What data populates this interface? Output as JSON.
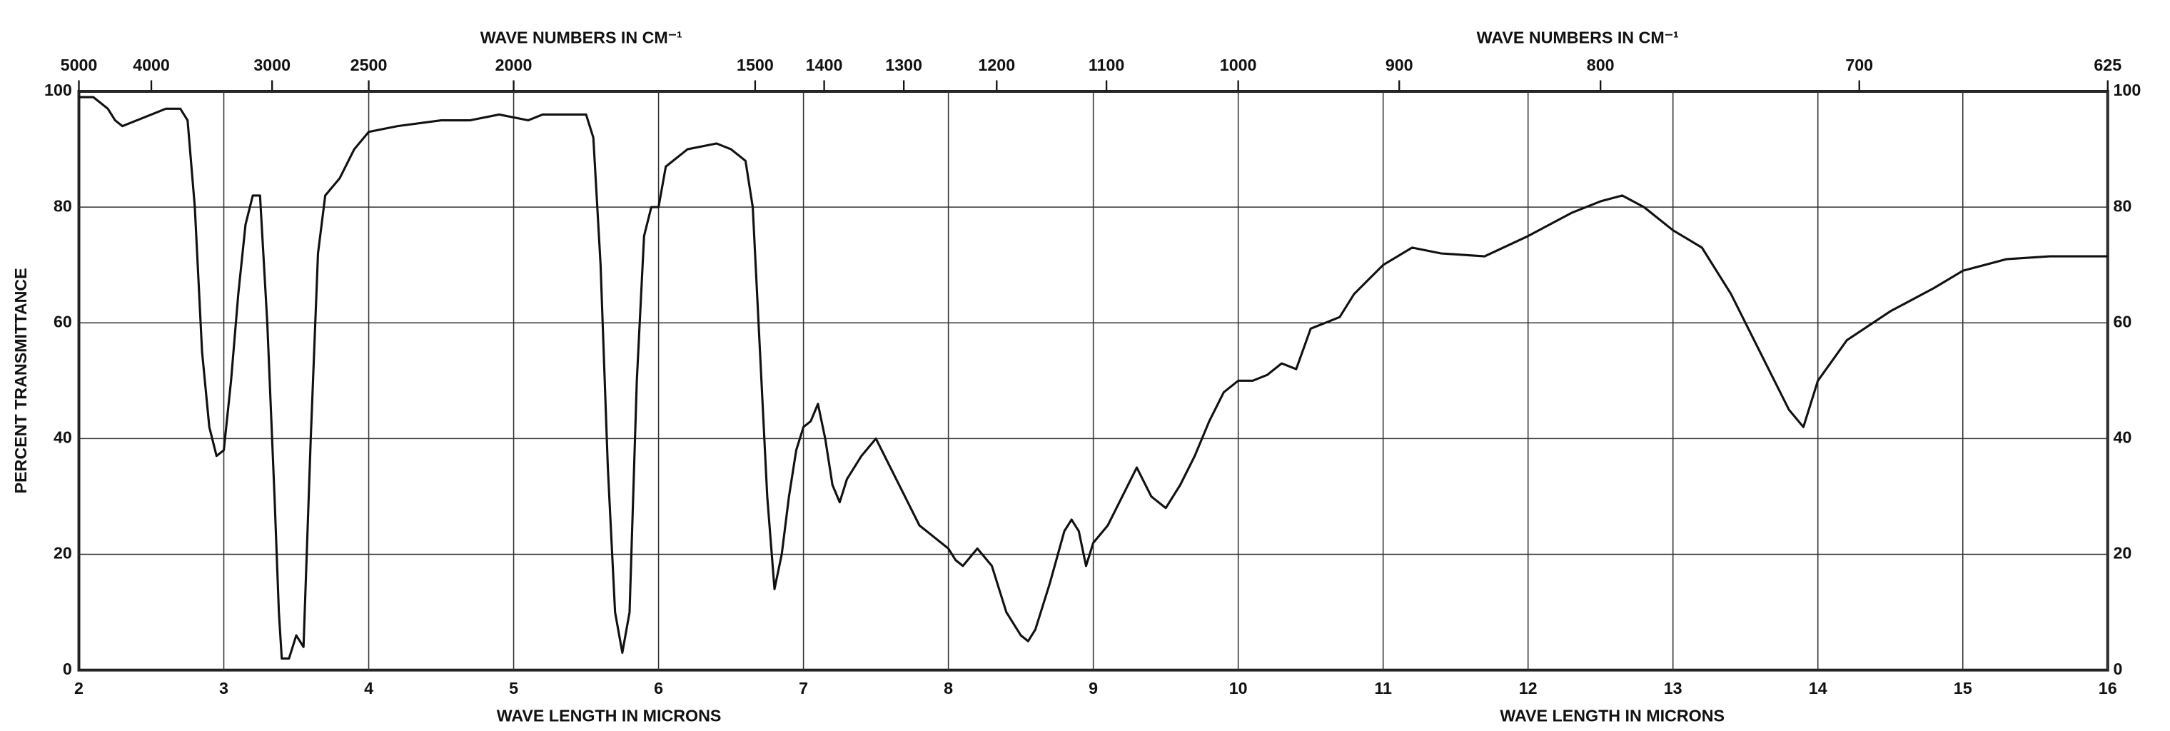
{
  "chart_data": {
    "type": "line",
    "top_axis_label": "WAVE NUMBERS IN CM⁻¹",
    "x_axis_label": "WAVE LENGTH IN MICRONS",
    "y_axis_label": "PERCENT TRANSMITTANCE",
    "color": "#111111",
    "grid": true,
    "xlim": [
      2,
      16
    ],
    "xticks": [
      2,
      3,
      4,
      5,
      6,
      7,
      8,
      9,
      10,
      11,
      12,
      13,
      14,
      15,
      16
    ],
    "x2ticks": [
      5000,
      4000,
      3000,
      2500,
      2000,
      1500,
      1400,
      1300,
      1200,
      1100,
      1000,
      900,
      800,
      700,
      625
    ],
    "ylim": [
      0,
      100
    ],
    "yticks": [
      0,
      20,
      40,
      60,
      80,
      100
    ],
    "x": [
      2.0,
      2.1,
      2.2,
      2.25,
      2.3,
      2.4,
      2.5,
      2.6,
      2.7,
      2.75,
      2.8,
      2.85,
      2.9,
      2.95,
      3.0,
      3.05,
      3.1,
      3.15,
      3.2,
      3.25,
      3.3,
      3.35,
      3.38,
      3.4,
      3.45,
      3.5,
      3.55,
      3.6,
      3.65,
      3.7,
      3.8,
      3.9,
      4.0,
      4.2,
      4.5,
      4.7,
      4.9,
      5.1,
      5.2,
      5.5,
      5.55,
      5.6,
      5.65,
      5.7,
      5.75,
      5.8,
      5.85,
      5.9,
      5.95,
      6.0,
      6.05,
      6.2,
      6.4,
      6.5,
      6.6,
      6.65,
      6.7,
      6.75,
      6.8,
      6.85,
      6.9,
      6.95,
      7.0,
      7.05,
      7.1,
      7.15,
      7.2,
      7.25,
      7.3,
      7.4,
      7.5,
      7.6,
      7.7,
      7.8,
      7.9,
      8.0,
      8.05,
      8.1,
      8.2,
      8.3,
      8.4,
      8.5,
      8.55,
      8.6,
      8.7,
      8.8,
      8.85,
      8.9,
      8.95,
      9.0,
      9.1,
      9.2,
      9.3,
      9.4,
      9.5,
      9.6,
      9.7,
      9.8,
      9.9,
      10.0,
      10.1,
      10.2,
      10.3,
      10.4,
      10.5,
      10.6,
      10.7,
      10.8,
      11.0,
      11.2,
      11.4,
      11.7,
      12.0,
      12.3,
      12.5,
      12.65,
      12.8,
      13.0,
      13.2,
      13.4,
      13.6,
      13.8,
      13.9,
      14.0,
      14.2,
      14.5,
      14.8,
      15.0,
      15.3,
      15.6,
      16.0
    ],
    "values": [
      99,
      99,
      97,
      95,
      94,
      95,
      96,
      97,
      97,
      95,
      80,
      55,
      42,
      37,
      38,
      50,
      65,
      77,
      82,
      82,
      60,
      30,
      10,
      2,
      2,
      6,
      4,
      40,
      72,
      82,
      85,
      90,
      93,
      94,
      95,
      95,
      96,
      95,
      96,
      96,
      92,
      70,
      35,
      10,
      3,
      10,
      50,
      75,
      80,
      80,
      87,
      90,
      91,
      90,
      88,
      80,
      55,
      30,
      14,
      20,
      30,
      38,
      42,
      43,
      46,
      40,
      32,
      29,
      33,
      37,
      40,
      35,
      30,
      25,
      23,
      21,
      19,
      18,
      21,
      18,
      10,
      6,
      5,
      7,
      15,
      24,
      26,
      24,
      18,
      22,
      25,
      30,
      35,
      30,
      28,
      32,
      37,
      43,
      48,
      50,
      50,
      51,
      53,
      52,
      59,
      60,
      61,
      65,
      70,
      73,
      72,
      71.5,
      75,
      79,
      81,
      82,
      80,
      76,
      73,
      65,
      55,
      45,
      42,
      50,
      57,
      62,
      66,
      69,
      71,
      71.5,
      71.5
    ]
  }
}
